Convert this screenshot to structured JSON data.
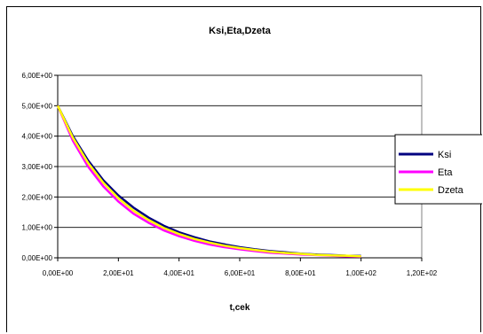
{
  "chart_data": {
    "type": "line",
    "title": "Ksi,Eta,Dzeta",
    "xlabel": "t,cek",
    "ylabel": "",
    "xlim": [
      0,
      120
    ],
    "ylim": [
      0,
      6
    ],
    "x_ticks": [
      0,
      20,
      40,
      60,
      80,
      100,
      120
    ],
    "x_tick_labels": [
      "0,00E+00",
      "2,00E+01",
      "4,00E+01",
      "6,00E+01",
      "8,00E+01",
      "1,00E+02",
      "1,20E+02"
    ],
    "y_ticks": [
      0,
      1,
      2,
      3,
      4,
      5,
      6
    ],
    "y_tick_labels": [
      "0,00E+00",
      "1,00E+00",
      "2,00E+00",
      "3,00E+00",
      "4,00E+00",
      "5,00E+00",
      "6,00E+00"
    ],
    "grid": "horizontal",
    "legend_position": "right",
    "x": [
      0,
      5,
      10,
      15,
      20,
      25,
      30,
      35,
      40,
      45,
      50,
      55,
      60,
      65,
      70,
      75,
      80,
      85,
      90,
      95,
      100
    ],
    "series": [
      {
        "name": "Ksi",
        "color": "#000080",
        "values": [
          5.0,
          4.0,
          3.2,
          2.55,
          2.05,
          1.65,
          1.32,
          1.05,
          0.84,
          0.68,
          0.54,
          0.44,
          0.35,
          0.28,
          0.22,
          0.18,
          0.14,
          0.11,
          0.09,
          0.07,
          0.06
        ]
      },
      {
        "name": "Eta",
        "color": "#FF00FF",
        "values": [
          5.0,
          3.85,
          3.0,
          2.35,
          1.85,
          1.45,
          1.15,
          0.9,
          0.71,
          0.56,
          0.44,
          0.35,
          0.28,
          0.22,
          0.17,
          0.14,
          0.11,
          0.09,
          0.07,
          0.05,
          0.04
        ]
      },
      {
        "name": "Dzeta",
        "color": "#FFFF00",
        "values": [
          5.0,
          3.95,
          3.12,
          2.47,
          1.96,
          1.55,
          1.24,
          0.98,
          0.78,
          0.62,
          0.5,
          0.4,
          0.32,
          0.26,
          0.2,
          0.16,
          0.13,
          0.1,
          0.08,
          0.07,
          0.05
        ]
      }
    ]
  }
}
